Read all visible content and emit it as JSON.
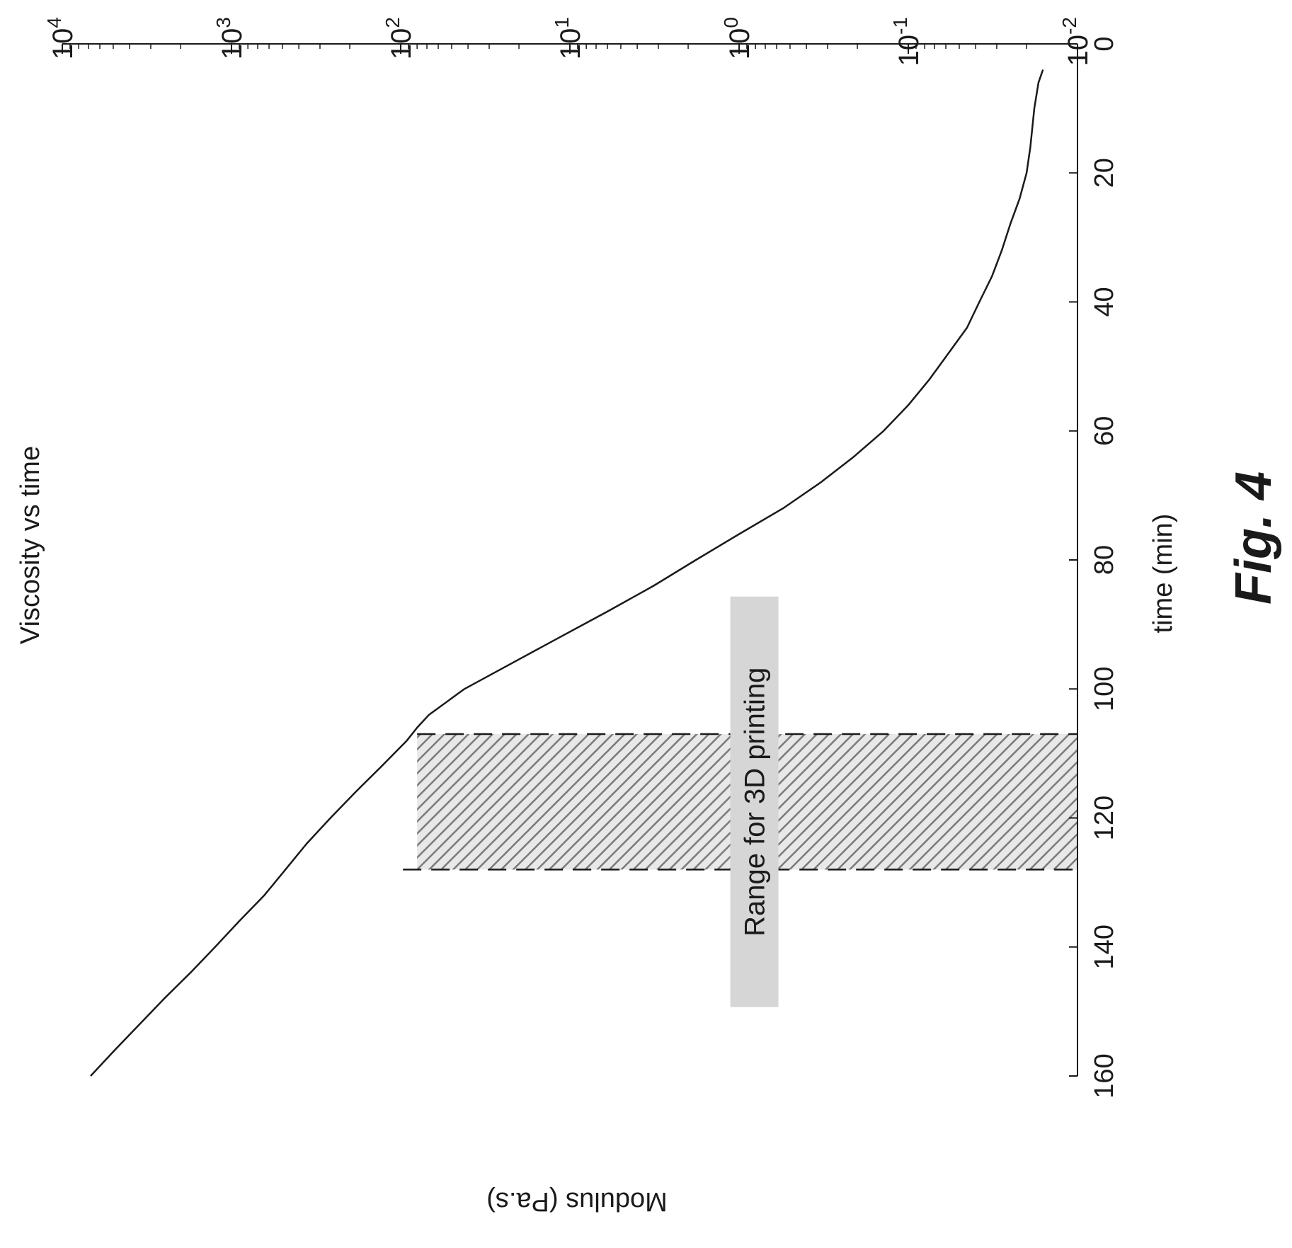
{
  "figure_label": "Fig. 4",
  "chart_data": {
    "type": "line",
    "title": "Viscosity vs time",
    "xlabel": "time (min)",
    "ylabel": "Modulus (Pa.s)",
    "xlim": [
      0,
      160
    ],
    "ylim": [
      0.01,
      10000
    ],
    "y_scale": "log",
    "grid": false,
    "legend": "none",
    "orientation": "figure rotated 90 degrees clockwise on the page",
    "x_ticks": [
      "0",
      "20",
      "40",
      "60",
      "80",
      "100",
      "120",
      "140",
      "160"
    ],
    "y_ticks": [
      {
        "base": "10",
        "exp": "-2"
      },
      {
        "base": "10",
        "exp": "-1"
      },
      {
        "base": "10",
        "exp": "0"
      },
      {
        "base": "10",
        "exp": "1"
      },
      {
        "base": "10",
        "exp": "2"
      },
      {
        "base": "10",
        "exp": "3"
      },
      {
        "base": "10",
        "exp": "4"
      }
    ],
    "series": [
      {
        "color": "#1a1a1a",
        "x": [
          4,
          6,
          10,
          16,
          20,
          24,
          28,
          32,
          36,
          40,
          44,
          48,
          52,
          56,
          60,
          64,
          68,
          72,
          76,
          80,
          84,
          88,
          92,
          96,
          100,
          104,
          106,
          108,
          112,
          116,
          120,
          124,
          128,
          132,
          136,
          140,
          144,
          148,
          152,
          156,
          160
        ],
        "y": [
          0.016,
          0.017,
          0.018,
          0.019,
          0.02,
          0.022,
          0.025,
          0.028,
          0.032,
          0.038,
          0.045,
          0.058,
          0.075,
          0.1,
          0.14,
          0.21,
          0.33,
          0.55,
          1.0,
          1.8,
          3.2,
          6.0,
          11.5,
          22,
          42,
          68,
          80,
          92,
          130,
          185,
          260,
          360,
          480,
          640,
          900,
          1250,
          1750,
          2500,
          3500,
          4900,
          6800
        ]
      }
    ],
    "annotations": [
      {
        "type": "shaded-band",
        "x_range": [
          107,
          128
        ],
        "y_range": [
          0.01,
          80
        ],
        "pattern": "diagonal-hatch",
        "label": "Range for 3D printing"
      }
    ]
  }
}
